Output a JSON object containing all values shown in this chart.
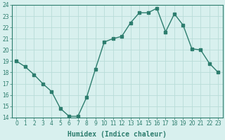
{
  "x": [
    0,
    1,
    2,
    3,
    4,
    5,
    6,
    7,
    8,
    9,
    10,
    11,
    12,
    13,
    14,
    15,
    16,
    17,
    18,
    19,
    20,
    21,
    22,
    23
  ],
  "y": [
    19.0,
    18.5,
    17.8,
    17.0,
    16.3,
    14.8,
    14.1,
    14.1,
    15.8,
    18.3,
    20.7,
    21.0,
    21.2,
    22.4,
    23.3,
    23.3,
    23.7,
    21.6,
    23.2,
    22.2,
    20.1,
    20.0,
    18.8,
    18.0
  ],
  "line_color": "#2d7d6e",
  "marker": "s",
  "marker_size": 2.2,
  "bg_color": "#d8f0ee",
  "grid_color": "#b8dcd8",
  "xlabel": "Humidex (Indice chaleur)",
  "xlim": [
    -0.5,
    23.5
  ],
  "ylim": [
    14,
    24
  ],
  "yticks": [
    14,
    15,
    16,
    17,
    18,
    19,
    20,
    21,
    22,
    23,
    24
  ],
  "xticks": [
    0,
    1,
    2,
    3,
    4,
    5,
    6,
    7,
    8,
    9,
    10,
    11,
    12,
    13,
    14,
    15,
    16,
    17,
    18,
    19,
    20,
    21,
    22,
    23
  ],
  "tick_fontsize": 5.5,
  "xlabel_fontsize": 7.0,
  "linewidth": 1.0
}
